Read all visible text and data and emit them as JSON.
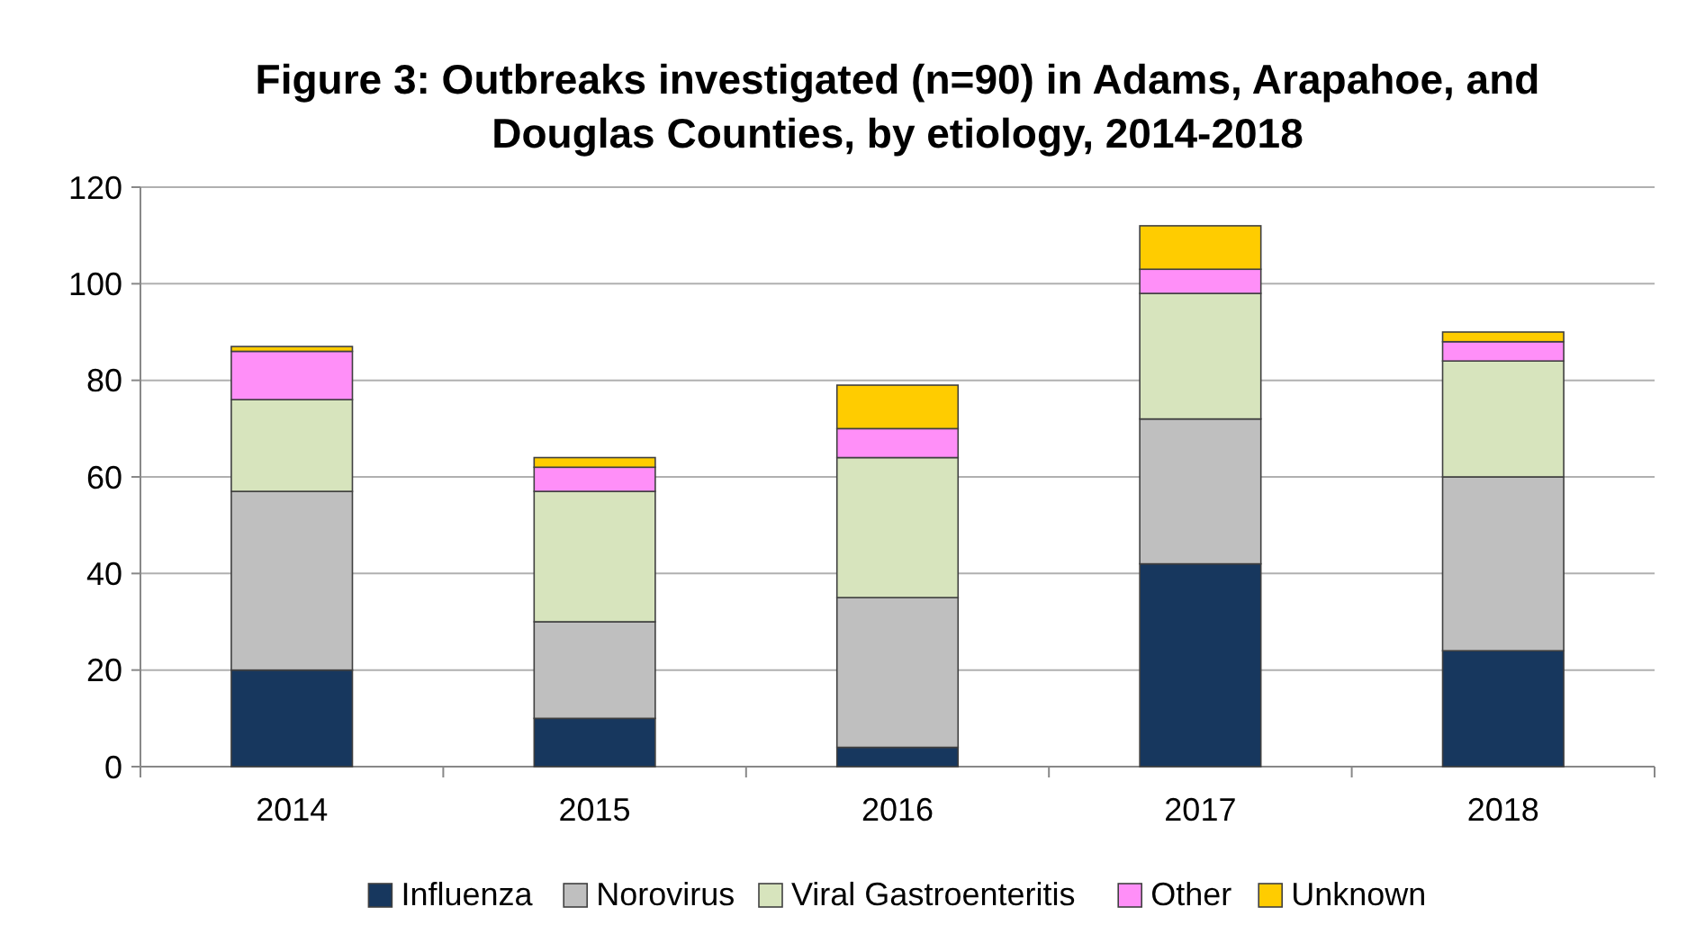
{
  "chart_data": {
    "type": "bar",
    "stacked": true,
    "title": "Figure 3: Outbreaks investigated (n=90) in Adams, Arapahoe, and Douglas Counties, by etiology, 2014-2018",
    "categories": [
      "2014",
      "2015",
      "2016",
      "2017",
      "2018"
    ],
    "series": [
      {
        "name": "Influenza",
        "color": "#17375e",
        "values": [
          20,
          10,
          4,
          42,
          24
        ]
      },
      {
        "name": "Norovirus",
        "color": "#bfbfbf",
        "values": [
          37,
          20,
          31,
          30,
          36
        ]
      },
      {
        "name": "Viral Gastroenteritis",
        "color": "#d7e4bd",
        "values": [
          19,
          27,
          29,
          26,
          24
        ]
      },
      {
        "name": "Other",
        "color": "#ff8ff8",
        "values": [
          10,
          5,
          6,
          5,
          4
        ]
      },
      {
        "name": "Unknown",
        "color": "#ffcc00",
        "values": [
          1,
          2,
          9,
          9,
          2
        ]
      }
    ],
    "ylim": [
      0,
      120
    ],
    "yticks": [
      0,
      20,
      40,
      60,
      80,
      100,
      120
    ],
    "grid": "y",
    "legend": "bottom"
  }
}
